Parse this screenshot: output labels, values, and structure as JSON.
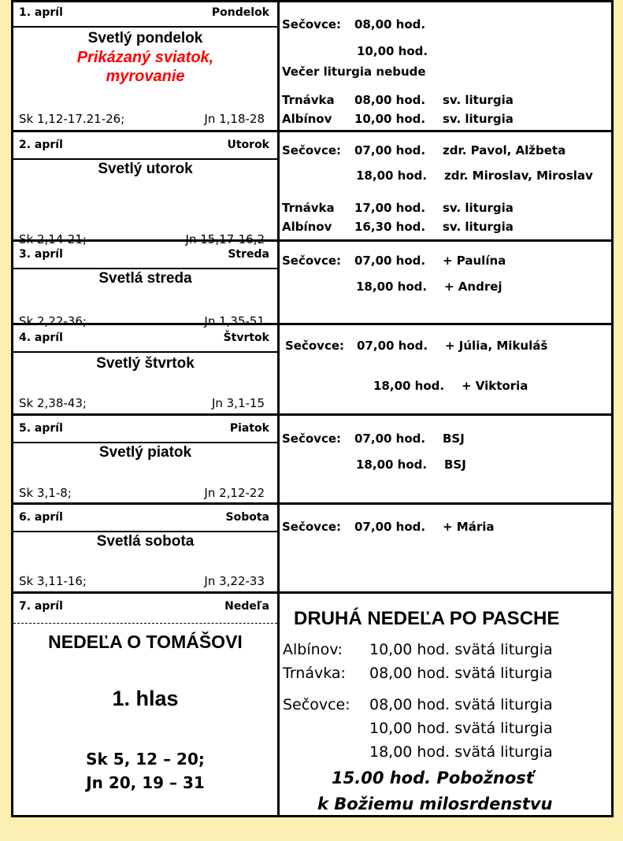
{
  "days": [
    {
      "date": "1. apríl",
      "day": "Pondelok",
      "title": "Svetlý pondelok",
      "notes": [
        "Prikázaný sviatok,",
        "myrovanie"
      ],
      "reading_left": "Sk 1,12-17.21-26;",
      "reading_right": "Jn 1,18-28",
      "services": [
        {
          "place": "Sečovce:",
          "time": "08,00 hod.",
          "note": ""
        },
        {
          "place": "",
          "time": "10,00 hod.",
          "note": ""
        },
        {
          "place": "Večer liturgia nebude",
          "time": "",
          "note": ""
        },
        {
          "place": "Trnávka",
          "time": "08,00 hod.",
          "note": "sv. liturgia"
        },
        {
          "place": "Albínov",
          "time": "10,00 hod.",
          "note": "sv. liturgia"
        }
      ]
    },
    {
      "date": "2. apríl",
      "day": "Utorok",
      "title": "Svetlý utorok",
      "notes": [],
      "reading_left": "Sk 2,14-21;",
      "reading_right": "Jn 15,17-16,2",
      "services": [
        {
          "place": "Sečovce:",
          "time": "07,00 hod.",
          "note": "zdr. Pavol, Alžbeta"
        },
        {
          "place": "",
          "time": "18,00 hod.",
          "note": "zdr. Miroslav, Miroslav"
        },
        {
          "place": "Trnávka",
          "time": "17,00 hod.",
          "note": "sv. liturgia"
        },
        {
          "place": "Albínov",
          "time": "16,30 hod.",
          "note": "sv. liturgia"
        }
      ]
    },
    {
      "date": "3. apríl",
      "day": "Streda",
      "title": "Svetlá streda",
      "notes": [],
      "reading_left": "Sk 2,22-36;",
      "reading_right": "Jn 1,35-51",
      "services": [
        {
          "place": "Sečovce:",
          "time": "07,00 hod.",
          "note": "+ Paulína"
        },
        {
          "place": "",
          "time": "18,00 hod.",
          "note": "+ Andrej"
        }
      ]
    },
    {
      "date": "4. apríl",
      "day": "Štvrtok",
      "title": "Svetlý štvrtok",
      "notes": [],
      "reading_left": "Sk 2,38-43;",
      "reading_right": "Jn 3,1-15",
      "services": [
        {
          "place": "Sečovce:",
          "time": "07,00 hod.",
          "note": "+ Júlia, Mikuláš"
        },
        {
          "place": "",
          "time": "18,00 hod.",
          "note": "+ Viktoria"
        }
      ]
    },
    {
      "date": "5. apríl",
      "day": "Piatok",
      "title": "Svetlý piatok",
      "notes": [],
      "reading_left": "Sk 3,1-8;",
      "reading_right": "Jn 2,12-22",
      "services": [
        {
          "place": "Sečovce:",
          "time": "07,00 hod.",
          "note": "BSJ"
        },
        {
          "place": "",
          "time": "18,00 hod.",
          "note": "BSJ"
        }
      ]
    },
    {
      "date": "6. apríl",
      "day": "Sobota",
      "title": "Svetlá sobota",
      "notes": [],
      "reading_left": "Sk 3,11-16;",
      "reading_right": "Jn 3,22-33",
      "services": [
        {
          "place": "Sečovce:",
          "time": "07,00 hod.",
          "note": "+ Mária"
        }
      ]
    }
  ],
  "sunday": {
    "date": "7. apríl",
    "day": "Nedeľa",
    "title": "NEDEĽA O TOMÁŠOVI",
    "tone": "1. hlas",
    "readings": [
      "Sk 5, 12 – 20;",
      "Jn 20, 19 – 31"
    ],
    "heading": "DRUHÁ NEDEĽA PO PASCHE",
    "services": [
      {
        "place": "Albínov:",
        "time": "10,00 hod. svätá liturgia"
      },
      {
        "place": "Trnávka:",
        "time": "08,00 hod. svätá liturgia"
      },
      {
        "place": "Sečovce:",
        "time": "08,00 hod. svätá liturgia"
      },
      {
        "place": "",
        "time": "10,00 hod. svätá liturgia"
      },
      {
        "place": "",
        "time": "18,00 hod. svätá liturgia"
      }
    ],
    "devotion": [
      "15.00  hod. Pobožnosť",
      "k Božiemu milosrdenstvu"
    ]
  },
  "colors": {
    "background": "#fbf0b2",
    "highlight": "#ff0000"
  }
}
